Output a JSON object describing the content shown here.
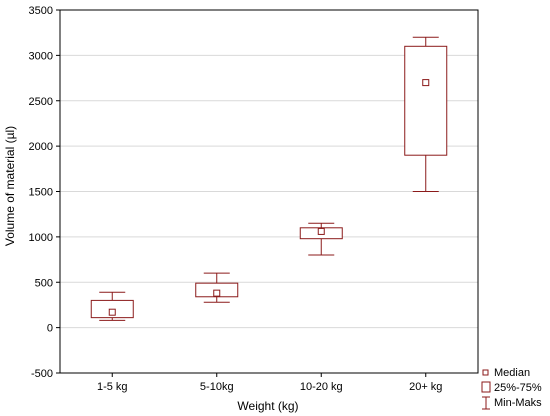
{
  "chart_data": {
    "type": "box",
    "categories": [
      "1-5 kg",
      "5-10kg",
      "10-20 kg",
      "20+ kg"
    ],
    "boxes": [
      {
        "category": "1-5 kg",
        "min": 80,
        "q1": 110,
        "median": 170,
        "q3": 300,
        "max": 390
      },
      {
        "category": "5-10kg",
        "min": 280,
        "q1": 340,
        "median": 380,
        "q3": 490,
        "max": 600
      },
      {
        "category": "10-20 kg",
        "min": 800,
        "q1": 980,
        "median": 1060,
        "q3": 1100,
        "max": 1150
      },
      {
        "category": "20+ kg",
        "min": 1500,
        "q1": 1900,
        "median": 2700,
        "q3": 3100,
        "max": 3200
      }
    ],
    "xlabel": "Weight (kg)",
    "ylabel": "Volume of material (µl)",
    "ylim": [
      -500,
      3500
    ],
    "yticks": [
      -500,
      0,
      500,
      1000,
      1500,
      2000,
      2500,
      3000,
      3500
    ],
    "grid": true,
    "legend_position": "bottom-right",
    "legend": {
      "median": "Median",
      "box": "25%-75%",
      "whisker": "Min-Maks"
    },
    "color": "#8b1a1a"
  }
}
